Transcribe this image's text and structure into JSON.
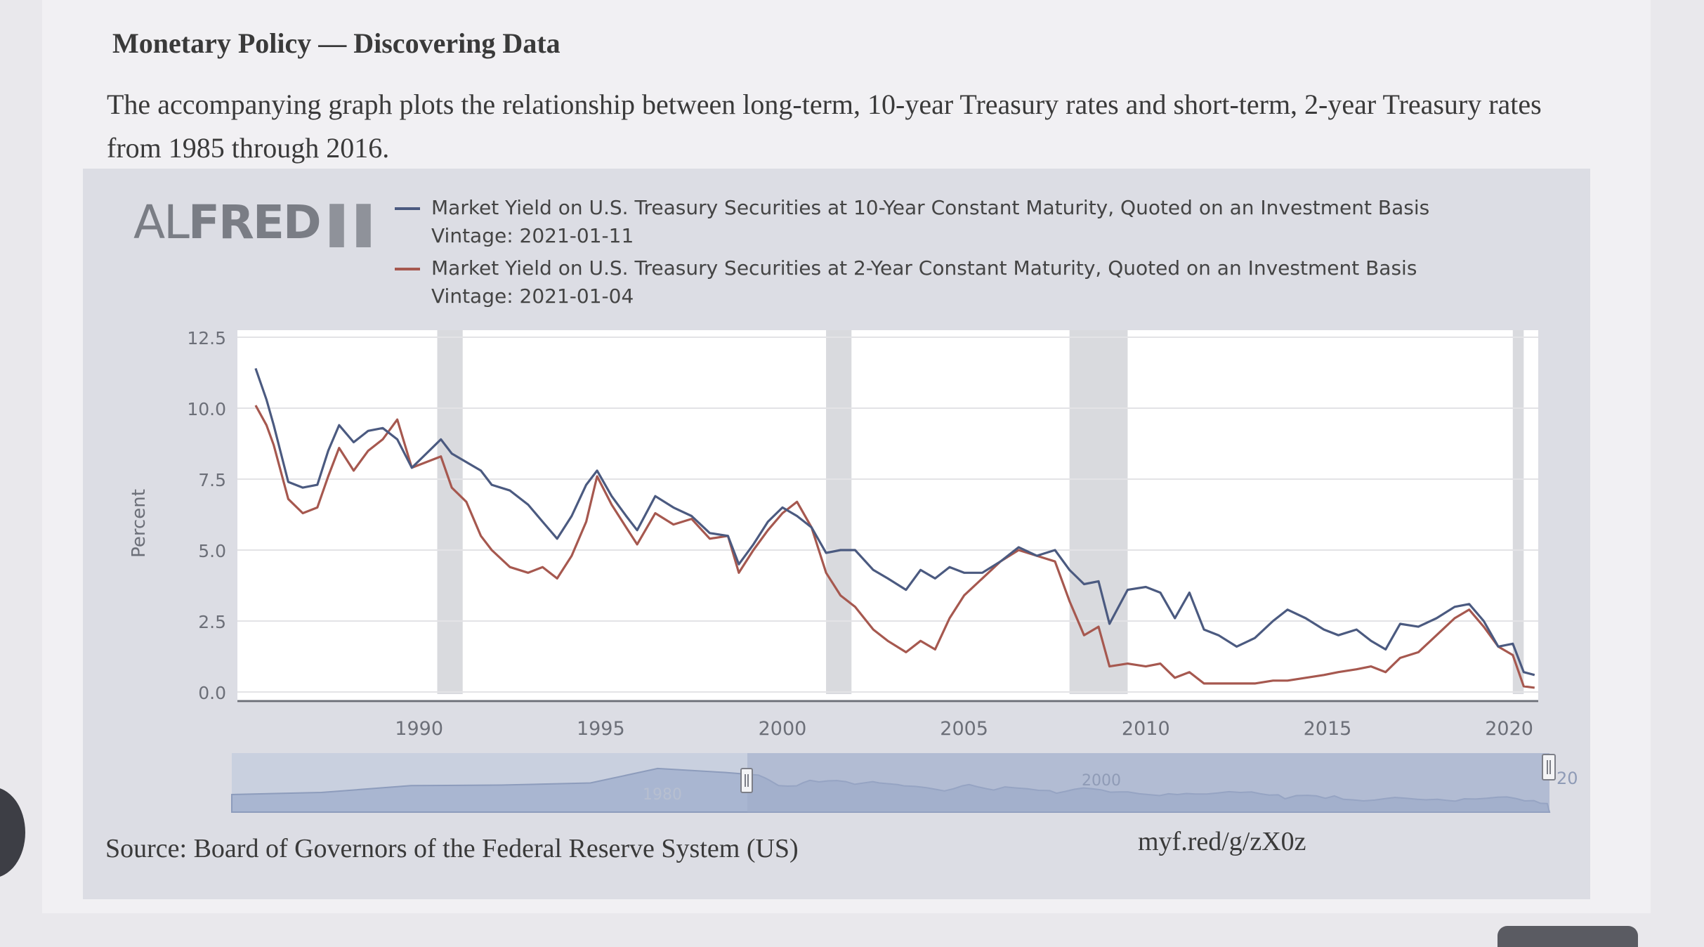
{
  "heading": "Monetary Policy — Discovering Data",
  "intro": "The accompanying graph plots the relationship between long-term, 10-year Treasury rates and short-term, 2-year Treasury rates from 1985 through 2016.",
  "logo": {
    "al": "AL",
    "fred": "FRED",
    "bars": "▌▌"
  },
  "source": "Source: Board of Governors of the Federal Reserve System (US)",
  "shortlink": "myf.red/g/zX0z",
  "colors": {
    "ten_year": "#4b5a80",
    "two_year": "#a6584f",
    "recession": "#d9dade",
    "navigator": "#a9b6d1"
  },
  "navigator": {
    "label_1980": "1980",
    "label_2000": "2000",
    "label_20": "20"
  },
  "chart_data": {
    "type": "line",
    "ylabel": "Percent",
    "ylim": [
      0,
      12.5
    ],
    "yticks": [
      "12.5",
      "10.0",
      "7.5",
      "5.0",
      "2.5",
      "0.0"
    ],
    "ytick_values": [
      12.5,
      10.0,
      7.5,
      5.0,
      2.5,
      0.0
    ],
    "xlim": [
      1985,
      2020.8
    ],
    "xticks": [
      "1990",
      "1995",
      "2000",
      "2005",
      "2010",
      "2015",
      "2020"
    ],
    "xtick_values": [
      1990,
      1995,
      2000,
      2005,
      2010,
      2015,
      2020
    ],
    "recessions": [
      [
        1990.5,
        1991.2
      ],
      [
        2001.2,
        2001.9
      ],
      [
        2007.9,
        2009.5
      ],
      [
        2020.1,
        2020.4
      ]
    ],
    "series": [
      {
        "name": "Market Yield on U.S. Treasury Securities at 10-Year Constant Maturity, Quoted on an Investment Basis Vintage: 2021-01-11",
        "color": "#4b5a80",
        "x": [
          1985.5,
          1985.8,
          1986.0,
          1986.4,
          1986.8,
          1987.2,
          1987.5,
          1987.8,
          1988.2,
          1988.6,
          1989.0,
          1989.4,
          1989.8,
          1990.2,
          1990.6,
          1990.9,
          1991.3,
          1991.7,
          1992.0,
          1992.5,
          1993.0,
          1993.4,
          1993.8,
          1994.2,
          1994.6,
          1994.9,
          1995.3,
          1995.7,
          1996.0,
          1996.5,
          1997.0,
          1997.5,
          1998.0,
          1998.5,
          1998.8,
          1999.2,
          1999.6,
          2000.0,
          2000.4,
          2000.8,
          2001.2,
          2001.6,
          2002.0,
          2002.5,
          2002.9,
          2003.4,
          2003.8,
          2004.2,
          2004.6,
          2005.0,
          2005.5,
          2006.0,
          2006.5,
          2007.0,
          2007.5,
          2007.9,
          2008.3,
          2008.7,
          2009.0,
          2009.5,
          2010.0,
          2010.4,
          2010.8,
          2011.2,
          2011.6,
          2012.0,
          2012.5,
          2013.0,
          2013.5,
          2013.9,
          2014.4,
          2014.9,
          2015.3,
          2015.8,
          2016.2,
          2016.6,
          2017.0,
          2017.5,
          2018.0,
          2018.5,
          2018.9,
          2019.3,
          2019.7,
          2020.1,
          2020.4,
          2020.7
        ],
        "values": [
          11.4,
          10.3,
          9.4,
          7.4,
          7.2,
          7.3,
          8.5,
          9.4,
          8.8,
          9.2,
          9.3,
          8.9,
          7.9,
          8.4,
          8.9,
          8.4,
          8.1,
          7.8,
          7.3,
          7.1,
          6.6,
          6.0,
          5.4,
          6.2,
          7.3,
          7.8,
          6.9,
          6.2,
          5.7,
          6.9,
          6.5,
          6.2,
          5.6,
          5.5,
          4.5,
          5.2,
          6.0,
          6.5,
          6.2,
          5.8,
          4.9,
          5.0,
          5.0,
          4.3,
          4.0,
          3.6,
          4.3,
          4.0,
          4.4,
          4.2,
          4.2,
          4.6,
          5.1,
          4.8,
          5.0,
          4.3,
          3.8,
          3.9,
          2.4,
          3.6,
          3.7,
          3.5,
          2.6,
          3.5,
          2.2,
          2.0,
          1.6,
          1.9,
          2.5,
          2.9,
          2.6,
          2.2,
          2.0,
          2.2,
          1.8,
          1.5,
          2.4,
          2.3,
          2.6,
          3.0,
          3.1,
          2.5,
          1.6,
          1.7,
          0.7,
          0.6
        ]
      },
      {
        "name": "Market Yield on U.S. Treasury Securities at 2-Year Constant Maturity, Quoted on an Investment Basis Vintage: 2021-01-04",
        "color": "#a6584f",
        "x": [
          1985.5,
          1985.8,
          1986.0,
          1986.4,
          1986.8,
          1987.2,
          1987.5,
          1987.8,
          1988.2,
          1988.6,
          1989.0,
          1989.4,
          1989.8,
          1990.2,
          1990.6,
          1990.9,
          1991.3,
          1991.7,
          1992.0,
          1992.5,
          1993.0,
          1993.4,
          1993.8,
          1994.2,
          1994.6,
          1994.9,
          1995.3,
          1995.7,
          1996.0,
          1996.5,
          1997.0,
          1997.5,
          1998.0,
          1998.5,
          1998.8,
          1999.2,
          1999.6,
          2000.0,
          2000.4,
          2000.8,
          2001.2,
          2001.6,
          2002.0,
          2002.5,
          2002.9,
          2003.4,
          2003.8,
          2004.2,
          2004.6,
          2005.0,
          2005.5,
          2006.0,
          2006.5,
          2007.0,
          2007.5,
          2007.9,
          2008.3,
          2008.7,
          2009.0,
          2009.5,
          2010.0,
          2010.4,
          2010.8,
          2011.2,
          2011.6,
          2012.0,
          2012.5,
          2013.0,
          2013.5,
          2013.9,
          2014.4,
          2014.9,
          2015.3,
          2015.8,
          2016.2,
          2016.6,
          2017.0,
          2017.5,
          2018.0,
          2018.5,
          2018.9,
          2019.3,
          2019.7,
          2020.1,
          2020.4,
          2020.7
        ],
        "values": [
          10.1,
          9.4,
          8.7,
          6.8,
          6.3,
          6.5,
          7.6,
          8.6,
          7.8,
          8.5,
          8.9,
          9.6,
          7.9,
          8.1,
          8.3,
          7.2,
          6.7,
          5.5,
          5.0,
          4.4,
          4.2,
          4.4,
          4.0,
          4.8,
          6.0,
          7.6,
          6.6,
          5.8,
          5.2,
          6.3,
          5.9,
          6.1,
          5.4,
          5.5,
          4.2,
          5.0,
          5.7,
          6.3,
          6.7,
          5.8,
          4.2,
          3.4,
          3.0,
          2.2,
          1.8,
          1.4,
          1.8,
          1.5,
          2.6,
          3.4,
          4.0,
          4.6,
          5.0,
          4.8,
          4.6,
          3.2,
          2.0,
          2.3,
          0.9,
          1.0,
          0.9,
          1.0,
          0.5,
          0.7,
          0.3,
          0.3,
          0.3,
          0.3,
          0.4,
          0.4,
          0.5,
          0.6,
          0.7,
          0.8,
          0.9,
          0.7,
          1.2,
          1.4,
          2.0,
          2.6,
          2.9,
          2.3,
          1.6,
          1.3,
          0.2,
          0.15
        ]
      }
    ]
  }
}
